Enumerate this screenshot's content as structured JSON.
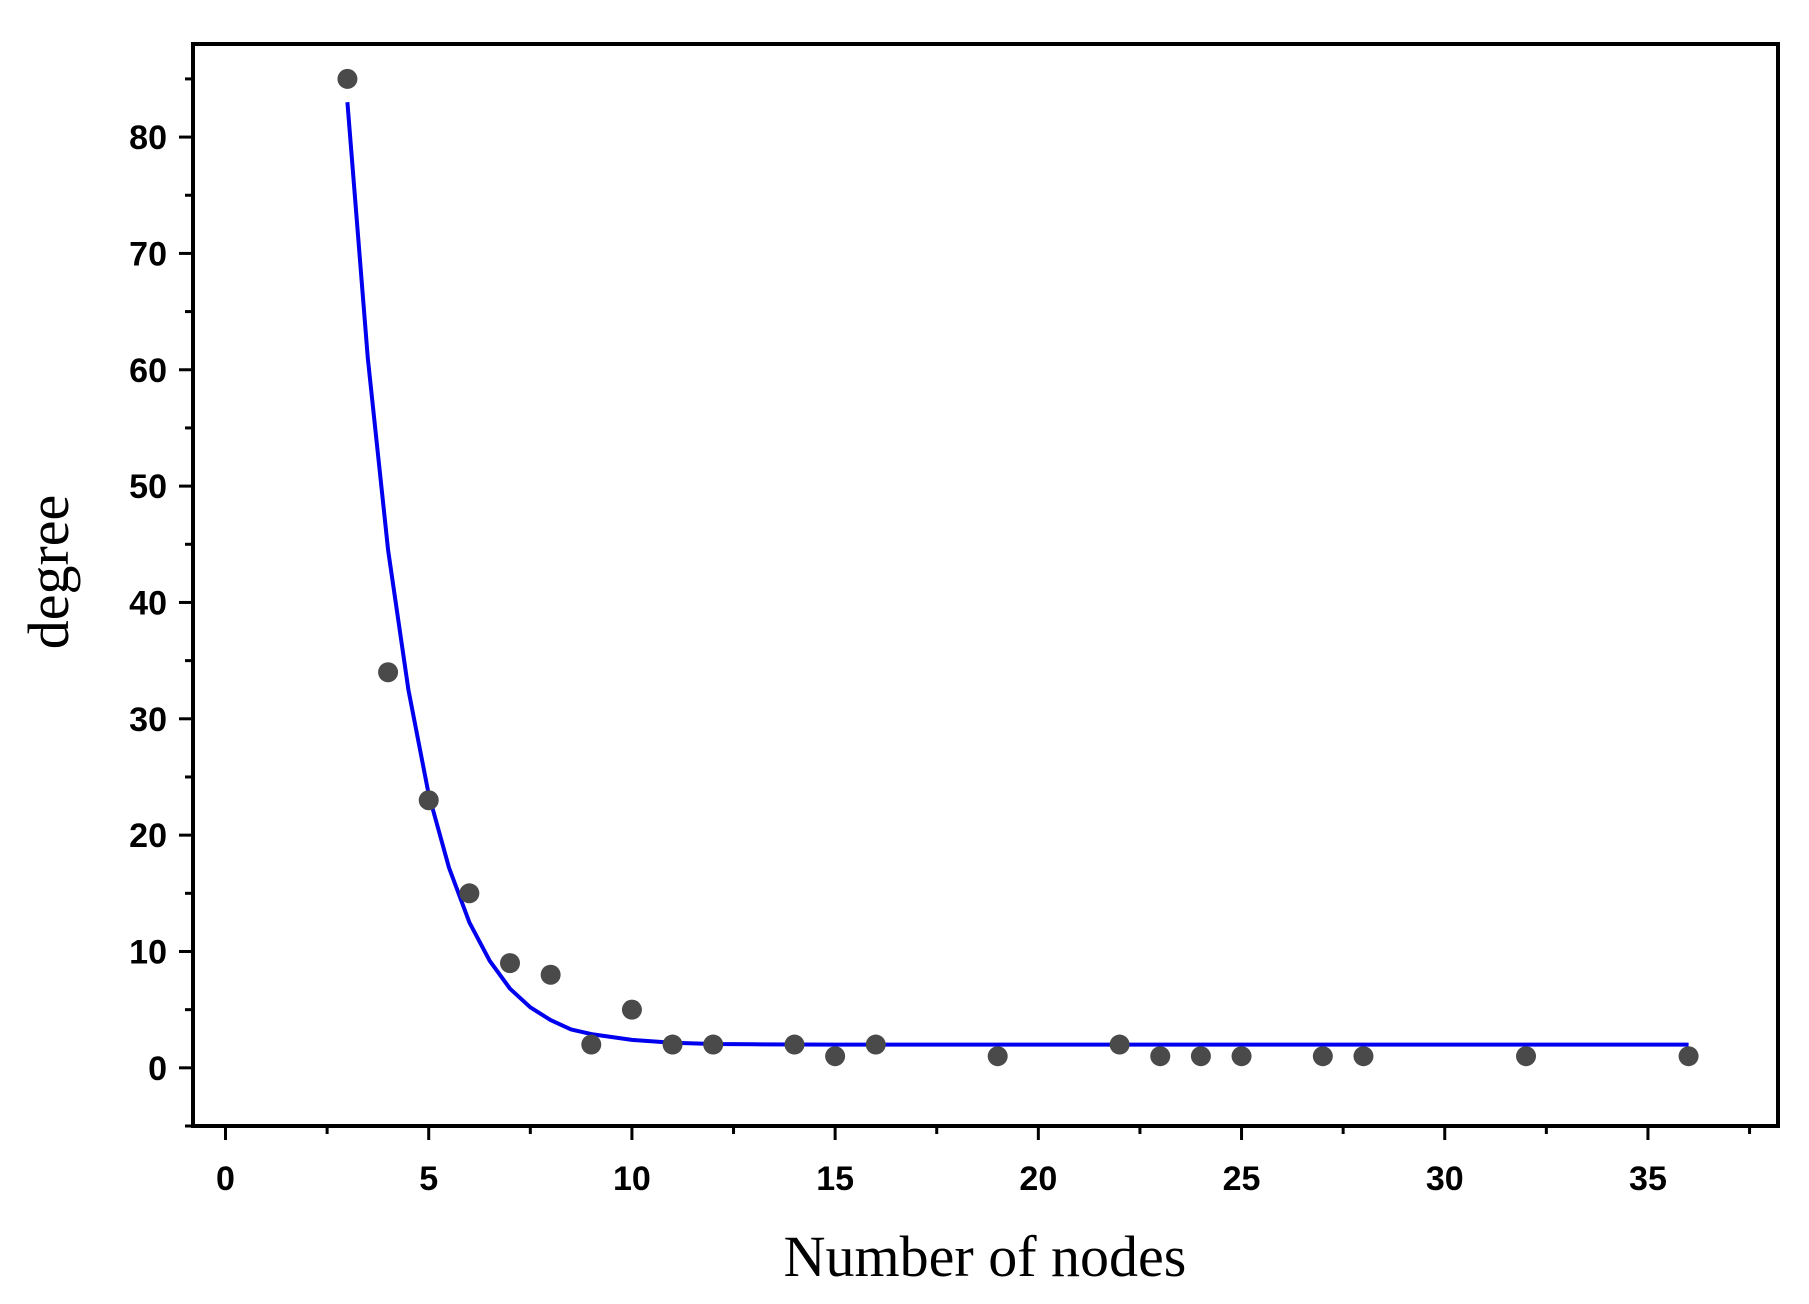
{
  "chart_data": {
    "type": "scatter",
    "xlabel": "Number of nodes",
    "ylabel": "degree",
    "xlim": [
      -0.8,
      38.2
    ],
    "ylim": [
      -5,
      88
    ],
    "x_ticks": [
      0,
      5,
      10,
      15,
      20,
      25,
      30,
      35
    ],
    "y_ticks": [
      0,
      10,
      20,
      30,
      40,
      50,
      60,
      70,
      80
    ],
    "grid": false,
    "legend": "none",
    "colors": {
      "points": "#4a4a4a",
      "fit_line": "#0000ee",
      "axes": "#000000"
    },
    "series": [
      {
        "type": "scatter",
        "x": [
          3,
          4,
          5,
          6,
          7,
          8,
          9,
          10,
          11,
          12,
          14,
          15,
          16,
          19,
          22,
          23,
          24,
          25,
          27,
          28,
          32,
          36
        ],
        "y": [
          85,
          34,
          23,
          15,
          9,
          8,
          2,
          5,
          2,
          2,
          2,
          1,
          2,
          1,
          2,
          1,
          1,
          1,
          1,
          1,
          1,
          1
        ]
      },
      {
        "type": "line",
        "x": [
          3,
          3.5,
          4,
          4.5,
          5,
          5.5,
          6,
          6.5,
          7,
          7.5,
          8,
          8.5,
          9,
          10,
          11,
          12,
          13,
          15,
          20,
          25,
          30,
          36
        ],
        "y": [
          83,
          61,
          44.5,
          32.5,
          23.5,
          17.2,
          12.5,
          9.2,
          6.8,
          5.2,
          4.1,
          3.3,
          2.9,
          2.4,
          2.15,
          2.05,
          2.02,
          2.0,
          2.0,
          2.0,
          2.0,
          2.0
        ]
      }
    ]
  }
}
